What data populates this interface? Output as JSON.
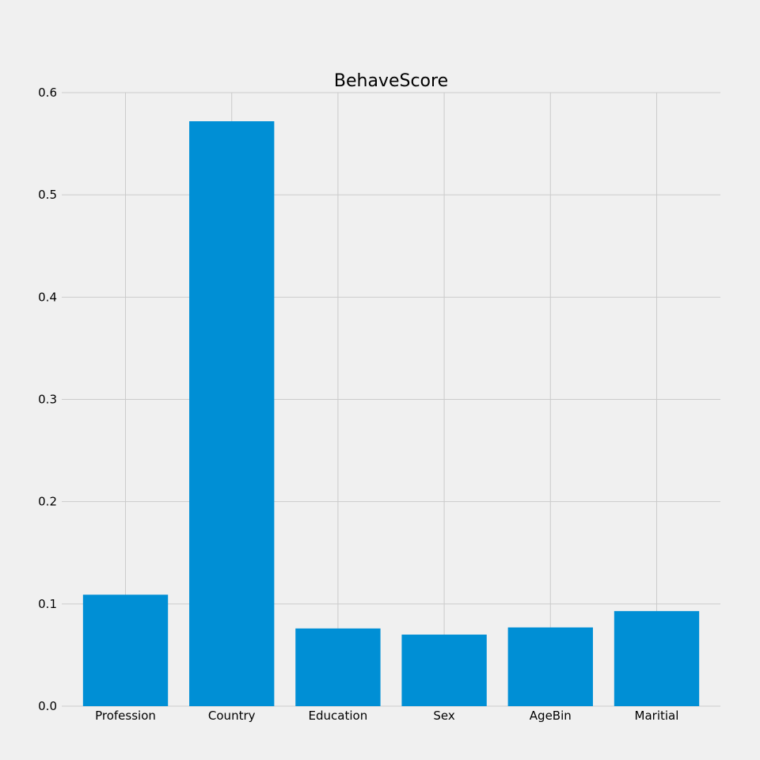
{
  "chart_data": {
    "type": "bar",
    "title": "BehaveScore",
    "xlabel": "",
    "ylabel": "",
    "categories": [
      "Profession",
      "Country",
      "Education",
      "Sex",
      "AgeBin",
      "Maritial"
    ],
    "values": [
      0.109,
      0.572,
      0.076,
      0.07,
      0.077,
      0.093
    ],
    "ylim": [
      0,
      0.6
    ],
    "yticks": [
      "0.0",
      "0.1",
      "0.2",
      "0.3",
      "0.4",
      "0.5",
      "0.6"
    ],
    "grid": true,
    "legend": "none",
    "bar_color": "#008fd5",
    "background_color": "#f0f0f0",
    "grid_color": "#cbcbcb"
  }
}
